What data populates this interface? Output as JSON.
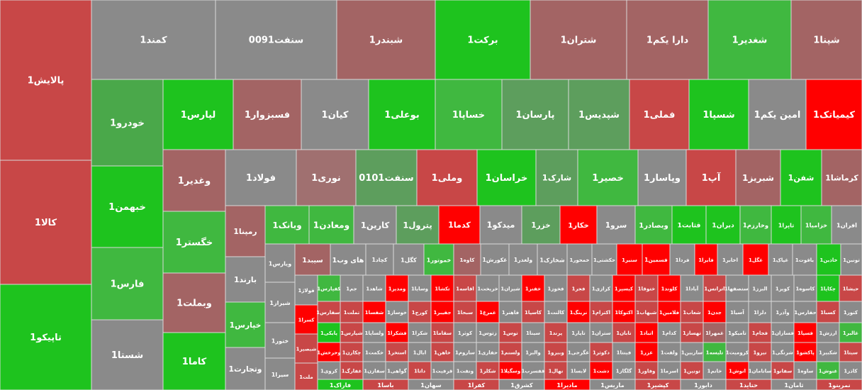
{
  "chart_data": {
    "type": "treemap",
    "tiles": [
      {
        "label": "پالایش1",
        "color": "#c84747"
      },
      {
        "label": "کالا1",
        "color": "#c84747"
      },
      {
        "label": "تاپیکو1",
        "color": "#1ec31e"
      },
      {
        "label": "کمند1",
        "color": "#8a8a8a"
      },
      {
        "label": "سنفت0091",
        "color": "#8a8a8a"
      },
      {
        "label": "شبندر1",
        "color": "#a36464"
      },
      {
        "label": "برکت1",
        "color": "#1ec31e"
      },
      {
        "label": "شتران1",
        "color": "#a36464"
      },
      {
        "label": "دارا یکم1",
        "color": "#a36464"
      },
      {
        "label": "شغدیر1",
        "color": "#40b840"
      },
      {
        "label": "شپنا1",
        "color": "#a36464"
      },
      {
        "label": "خودرو1",
        "color": "#4aa84a"
      },
      {
        "label": "خبهمن1",
        "color": "#1ec31e"
      },
      {
        "label": "فارس1",
        "color": "#40b840"
      },
      {
        "label": "شستا1",
        "color": "#8a8a8a"
      },
      {
        "label": "لپارس1",
        "color": "#1ec31e"
      },
      {
        "label": "فسبزوار1",
        "color": "#a36464"
      },
      {
        "label": "کیان1",
        "color": "#8a8a8a"
      },
      {
        "label": "بوعلی1",
        "color": "#1ec31e"
      },
      {
        "label": "خساپا1",
        "color": "#40b840"
      },
      {
        "label": "پارسان1",
        "color": "#5d9e5d"
      },
      {
        "label": "شپدیس1",
        "color": "#5d9e5d"
      },
      {
        "label": "فملی1",
        "color": "#c84747"
      },
      {
        "label": "شسپا1",
        "color": "#1ec31e"
      },
      {
        "label": "امین یکم1",
        "color": "#8a8a8a"
      },
      {
        "label": "کیمیاتک1",
        "color": "#ff0000"
      },
      {
        "label": "وغدیر1",
        "color": "#a36464"
      },
      {
        "label": "خگستر1",
        "color": "#40b840"
      },
      {
        "label": "وبملت1",
        "color": "#a36464"
      },
      {
        "label": "کاما1",
        "color": "#1ec31e"
      },
      {
        "label": "فولاد1",
        "color": "#8a8a8a"
      },
      {
        "label": "نوری1",
        "color": "#a07070"
      },
      {
        "label": "سنفت0101",
        "color": "#5d9e5d"
      },
      {
        "label": "وملی1",
        "color": "#c84747"
      },
      {
        "label": "خراسان1",
        "color": "#1ec31e"
      },
      {
        "label": "شارک1",
        "color": "#5d9e5d"
      },
      {
        "label": "خصیر1",
        "color": "#40b840"
      },
      {
        "label": "وپاسار1",
        "color": "#8a8a8a"
      },
      {
        "label": "آپ1",
        "color": "#c84747"
      },
      {
        "label": "شبریز1",
        "color": "#a36464"
      },
      {
        "label": "شفن1",
        "color": "#1ec31e"
      },
      {
        "label": "کرماشا1",
        "color": "#a36464"
      },
      {
        "label": "رمپنا1",
        "color": "#a36464"
      },
      {
        "label": "بارند1",
        "color": "#8a8a8a"
      },
      {
        "label": "خپارس1",
        "color": "#40b840"
      },
      {
        "label": "وتجارت1",
        "color": "#8a8a8a"
      },
      {
        "label": "وبانک1",
        "color": "#40b840"
      },
      {
        "label": "ومعادن1",
        "color": "#40b840"
      },
      {
        "label": "کارین1",
        "color": "#8a8a8a"
      },
      {
        "label": "پترول1",
        "color": "#5d9e5d"
      },
      {
        "label": "کدما1",
        "color": "#ff0000"
      },
      {
        "label": "میدکو1",
        "color": "#8a8a8a"
      },
      {
        "label": "خزر1",
        "color": "#5d9e5d"
      },
      {
        "label": "خکار1",
        "color": "#ff0000"
      },
      {
        "label": "سرو1",
        "color": "#8a8a8a"
      },
      {
        "label": "وبصادر1",
        "color": "#40b840"
      },
      {
        "label": "قثابت1",
        "color": "#1ec31e"
      },
      {
        "label": "دیران1",
        "color": "#1ec31e"
      },
      {
        "label": "وخارزم1",
        "color": "#40b840"
      },
      {
        "label": "تاپرا1",
        "color": "#1ec31e"
      },
      {
        "label": "خزامیا1",
        "color": "#40b840"
      },
      {
        "label": "افران1",
        "color": "#8a8a8a"
      },
      {
        "label": "ویارس1",
        "color": "#8a8a8a"
      },
      {
        "label": "شیراز1",
        "color": "#8a8a8a"
      },
      {
        "label": "ختور1",
        "color": "#8a8a8a"
      },
      {
        "label": "سیرا1",
        "color": "#8a8a8a"
      },
      {
        "label": "سیبد1",
        "color": "#a36464"
      },
      {
        "label": "های وب1",
        "color": "#8a8a8a"
      },
      {
        "label": "کچاد1",
        "color": "#8a8a8a"
      },
      {
        "label": "کگل1",
        "color": "#8a8a8a"
      },
      {
        "label": "خموتور1",
        "color": "#40b840"
      },
      {
        "label": "کاوه1",
        "color": "#a36464"
      },
      {
        "label": "غکورش1",
        "color": "#8a8a8a"
      },
      {
        "label": "ولغدر1",
        "color": "#8a8a8a"
      },
      {
        "label": "شخارک1",
        "color": "#8a8a8a"
      },
      {
        "label": "خمحور1",
        "color": "#8a8a8a"
      },
      {
        "label": "حکشتی1",
        "color": "#8a8a8a"
      },
      {
        "label": "سنیر1",
        "color": "#ff0000"
      },
      {
        "label": "فسمین1",
        "color": "#ff0000"
      },
      {
        "label": "فردا1",
        "color": "#8a8a8a"
      },
      {
        "label": "فایرا1",
        "color": "#ff0000"
      },
      {
        "label": "اخابر1",
        "color": "#8a8a8a"
      },
      {
        "label": "غگل1",
        "color": "#ff0000"
      },
      {
        "label": "غپاک1",
        "color": "#8a8a8a"
      },
      {
        "label": "یاقوت1",
        "color": "#8a8a8a"
      },
      {
        "label": "خاذین1",
        "color": "#1ec31e"
      },
      {
        "label": "تونین1",
        "color": "#8a8a8a"
      },
      {
        "label": "فولاژ1",
        "color": "#8a8a8a"
      },
      {
        "label": "کسرا1",
        "color": "#ff0000"
      },
      {
        "label": "شبصیر1",
        "color": "#c84747"
      },
      {
        "label": "ملت1",
        "color": "#c84747"
      },
      {
        "label": "کفپارس1",
        "color": "#40b840"
      },
      {
        "label": "جم1",
        "color": "#8a8a8a"
      },
      {
        "label": "شاهد1",
        "color": "#8a8a8a"
      },
      {
        "label": "ومدیر1",
        "color": "#ff0000"
      },
      {
        "label": "وسایا1",
        "color": "#8a8a8a"
      },
      {
        "label": "تکشا1",
        "color": "#ff0000"
      },
      {
        "label": "اقاسه1",
        "color": "#c84747"
      },
      {
        "label": "خریخت1",
        "color": "#8a8a8a"
      },
      {
        "label": "شیران1",
        "color": "#8a8a8a"
      },
      {
        "label": "خفنر1",
        "color": "#ff0000"
      },
      {
        "label": "فخوز1",
        "color": "#8a8a8a"
      },
      {
        "label": "فجر1",
        "color": "#c84747"
      },
      {
        "label": "کرازی1",
        "color": "#8a8a8a"
      },
      {
        "label": "کیسپر1",
        "color": "#ff0000"
      },
      {
        "label": "ختوقا1",
        "color": "#c84747"
      },
      {
        "label": "کلوند1",
        "color": "#ff0000"
      },
      {
        "label": "آبادا1",
        "color": "#8a8a8a"
      },
      {
        "label": "اترانس1",
        "color": "#c84747"
      },
      {
        "label": "استصفها1",
        "color": "#8a8a8a"
      },
      {
        "label": "البرز1",
        "color": "#8a8a8a"
      },
      {
        "label": "کویر1",
        "color": "#8a8a8a"
      },
      {
        "label": "کاسوه1",
        "color": "#8a8a8a"
      },
      {
        "label": "چکاپا1",
        "color": "#1ec31e"
      },
      {
        "label": "حیشا1",
        "color": "#c84747"
      },
      {
        "label": "اسفارس1",
        "color": "#c84747"
      },
      {
        "label": "تملت1",
        "color": "#c84747"
      },
      {
        "label": "شفسا1",
        "color": "#ff0000"
      },
      {
        "label": "خوساز1",
        "color": "#8a8a8a"
      },
      {
        "label": "کورج1",
        "color": "#c84747"
      },
      {
        "label": "جفیبر1",
        "color": "#ff0000"
      },
      {
        "label": "سبحا1",
        "color": "#c84747"
      },
      {
        "label": "غمرغ1",
        "color": "#ff0000"
      },
      {
        "label": "فاهنر1",
        "color": "#8a8a8a"
      },
      {
        "label": "کاسپا1",
        "color": "#c84747"
      },
      {
        "label": "کالنت1",
        "color": "#8a8a8a"
      },
      {
        "label": "نرینگ1",
        "color": "#ff0000"
      },
      {
        "label": "اکترام1",
        "color": "#c84747"
      },
      {
        "label": "اکتوکا1",
        "color": "#ff0000"
      },
      {
        "label": "شبهاب1",
        "color": "#c84747"
      },
      {
        "label": "فلامین1",
        "color": "#ff0000"
      },
      {
        "label": "شعاب1",
        "color": "#c84747"
      },
      {
        "label": "جدن1",
        "color": "#ff0000"
      },
      {
        "label": "آسیا1",
        "color": "#8a8a8a"
      },
      {
        "label": "دلزا1",
        "color": "#8a8a8a"
      },
      {
        "label": "وآذر1",
        "color": "#8a8a8a"
      },
      {
        "label": "حفارس1",
        "color": "#8a8a8a"
      },
      {
        "label": "کسبا1",
        "color": "#c84747"
      },
      {
        "label": "کنور1",
        "color": "#8a8a8a"
      },
      {
        "label": "پایکی1",
        "color": "#1ec31e"
      },
      {
        "label": "شپارس1",
        "color": "#c84747"
      },
      {
        "label": "ولساپا1",
        "color": "#8a8a8a"
      },
      {
        "label": "فشکرا1",
        "color": "#ff0000"
      },
      {
        "label": "شکرا1",
        "color": "#8a8a8a"
      },
      {
        "label": "سقاما1",
        "color": "#c84747"
      },
      {
        "label": "کوثر1",
        "color": "#8a8a8a"
      },
      {
        "label": "زتوس1",
        "color": "#8a8a8a"
      },
      {
        "label": "توس1",
        "color": "#c84747"
      },
      {
        "label": "سینا1",
        "color": "#8a8a8a"
      },
      {
        "label": "پرند1",
        "color": "#c84747"
      },
      {
        "label": "تاپار1",
        "color": "#8a8a8a"
      },
      {
        "label": "ستران1",
        "color": "#8a8a8a"
      },
      {
        "label": "تابان1",
        "color": "#c84747"
      },
      {
        "label": "اتباد1",
        "color": "#ff0000"
      },
      {
        "label": "کدام1",
        "color": "#8a8a8a"
      },
      {
        "label": "تهساز1",
        "color": "#c84747"
      },
      {
        "label": "غمهرا1",
        "color": "#a36464"
      },
      {
        "label": "تامیکو1",
        "color": "#8a8a8a"
      },
      {
        "label": "فجام1",
        "color": "#c84747"
      },
      {
        "label": "فسازان1",
        "color": "#8a8a8a"
      },
      {
        "label": "فسپا1",
        "color": "#ff0000"
      },
      {
        "label": "ارزش1",
        "color": "#8a8a8a"
      },
      {
        "label": "غالبر1",
        "color": "#40b840"
      },
      {
        "label": "وحرخش1",
        "color": "#ff0000"
      },
      {
        "label": "چکارن1",
        "color": "#c84747"
      },
      {
        "label": "خکمت1",
        "color": "#8a8a8a"
      },
      {
        "label": "استخر1",
        "color": "#c84747"
      },
      {
        "label": "ابال1",
        "color": "#8a8a8a"
      },
      {
        "label": "خاهن1",
        "color": "#c84747"
      },
      {
        "label": "ساروم1",
        "color": "#8a8a8a"
      },
      {
        "label": "حفاری1",
        "color": "#8a8a8a"
      },
      {
        "label": "ولسنم1",
        "color": "#c84747"
      },
      {
        "label": "والبر1",
        "color": "#8a8a8a"
      },
      {
        "label": "وبیرو1",
        "color": "#c84747"
      },
      {
        "label": "غگرجی1",
        "color": "#8a8a8a"
      },
      {
        "label": "دکوثر1",
        "color": "#c84747"
      },
      {
        "label": "فینتا1",
        "color": "#8a8a8a"
      },
      {
        "label": "غزر1",
        "color": "#ff0000"
      },
      {
        "label": "ولفت1",
        "color": "#8a8a8a"
      },
      {
        "label": "ساربین1",
        "color": "#8a8a8a"
      },
      {
        "label": "تلیسه1",
        "color": "#40b840"
      },
      {
        "label": "کرومیت1",
        "color": "#8a8a8a"
      },
      {
        "label": "نیرو1",
        "color": "#c84747"
      },
      {
        "label": "شرنگی1",
        "color": "#8a8a8a"
      },
      {
        "label": "پاکشو1",
        "color": "#ff0000"
      },
      {
        "label": "شکبیر1",
        "color": "#8a8a8a"
      },
      {
        "label": "سیتا1",
        "color": "#c84747"
      },
      {
        "label": "کروی1",
        "color": "#8a8a8a"
      },
      {
        "label": "غفارگ1",
        "color": "#c84747"
      },
      {
        "label": "سفازن1",
        "color": "#8a8a8a"
      },
      {
        "label": "گواهی1",
        "color": "#8a8a8a"
      },
      {
        "label": "داتا1",
        "color": "#c84747"
      },
      {
        "label": "قرفیت1",
        "color": "#8a8a8a"
      },
      {
        "label": "ونفت1",
        "color": "#8a8a8a"
      },
      {
        "label": "شکلر1",
        "color": "#c84747"
      },
      {
        "label": "وسگیلا1",
        "color": "#ff0000"
      },
      {
        "label": "قفسرب1",
        "color": "#8a8a8a"
      },
      {
        "label": "نهال1",
        "color": "#c84747"
      },
      {
        "label": "لابسا1",
        "color": "#8a8a8a"
      },
      {
        "label": "دشت1",
        "color": "#ff0000"
      },
      {
        "label": "گلگاز1",
        "color": "#8a8a8a"
      },
      {
        "label": "وفاور1",
        "color": "#c84747"
      },
      {
        "label": "اسرما1",
        "color": "#8a8a8a"
      },
      {
        "label": "تونین1",
        "color": "#c84747"
      },
      {
        "label": "خانم1",
        "color": "#8a8a8a"
      },
      {
        "label": "انوش1",
        "color": "#ff0000"
      },
      {
        "label": "ساتامان1",
        "color": "#8a8a8a"
      },
      {
        "label": "سفانو1",
        "color": "#c84747"
      },
      {
        "label": "ساوه1",
        "color": "#8a8a8a"
      },
      {
        "label": "غنوش1",
        "color": "#40b840"
      },
      {
        "label": "کاذر1",
        "color": "#8a8a8a"
      },
      {
        "label": "فاراک1",
        "color": "#1ec31e"
      },
      {
        "label": "باسا1",
        "color": "#c84747"
      },
      {
        "label": "سهان1",
        "color": "#8a8a8a"
      },
      {
        "label": "کفرا1",
        "color": "#c84747"
      },
      {
        "label": "کشرق1",
        "color": "#8a8a8a"
      },
      {
        "label": "مادیرا1",
        "color": "#ff0000"
      },
      {
        "label": "ماریس1",
        "color": "#8a8a8a"
      },
      {
        "label": "کپشیر1",
        "color": "#c84747"
      },
      {
        "label": "دابور1",
        "color": "#8a8a8a"
      },
      {
        "label": "حتاید1",
        "color": "#c84747"
      },
      {
        "label": "ثامان1",
        "color": "#8a8a8a"
      },
      {
        "label": "نمرینو1",
        "color": "#c84747"
      }
    ]
  }
}
